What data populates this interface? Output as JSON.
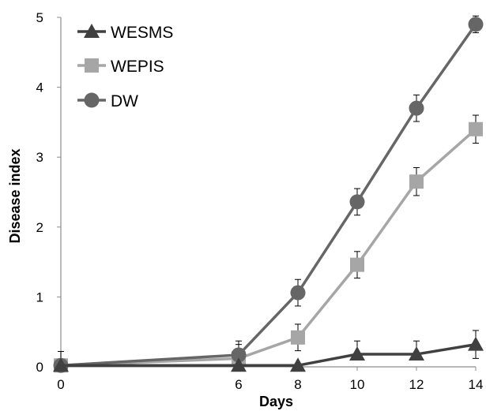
{
  "chart_data": {
    "type": "line",
    "title": "",
    "xlabel": "Days",
    "ylabel": "Disease index",
    "x": [
      0,
      6,
      8,
      10,
      12,
      14
    ],
    "x_ticks": [
      "0",
      "6",
      "8",
      "10",
      "12",
      "14"
    ],
    "xlim": [
      0,
      14
    ],
    "ylim": [
      0,
      5
    ],
    "y_ticks": [
      "0",
      "1",
      "2",
      "3",
      "4",
      "5"
    ],
    "grid": false,
    "legend_position": "top-left",
    "series": [
      {
        "name": "WESMS",
        "marker": "triangle",
        "color": "#404040",
        "values": [
          0.02,
          0.02,
          0.02,
          0.18,
          0.18,
          0.32
        ],
        "errors": [
          0.2,
          0.0,
          0.0,
          0.19,
          0.19,
          0.2
        ]
      },
      {
        "name": "WEPIS",
        "marker": "square",
        "color": "#a6a6a6",
        "values": [
          0.02,
          0.12,
          0.42,
          1.46,
          2.65,
          3.4
        ],
        "errors": [
          0.0,
          0.2,
          0.19,
          0.19,
          0.2,
          0.2
        ]
      },
      {
        "name": "DW",
        "marker": "circle",
        "color": "#666666",
        "values": [
          0.02,
          0.17,
          1.06,
          2.36,
          3.7,
          4.9
        ],
        "errors": [
          0.0,
          0.2,
          0.19,
          0.19,
          0.19,
          0.12
        ]
      }
    ]
  }
}
